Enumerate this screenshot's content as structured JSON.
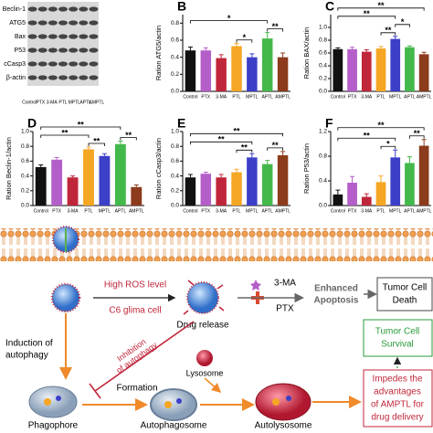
{
  "chart_data": [
    {
      "type": "bar",
      "panel": "B",
      "ylabel": "Ration ATG5/actin",
      "categories": [
        "Control",
        "PTX",
        "3-MA",
        "PTL",
        "MPTL",
        "APTL",
        "AMPTL"
      ],
      "values": [
        0.48,
        0.48,
        0.39,
        0.53,
        0.4,
        0.62,
        0.4
      ],
      "errors": [
        0.04,
        0.03,
        0.04,
        0.03,
        0.04,
        0.07,
        0.05
      ],
      "colors": [
        "#111111",
        "#b45fc9",
        "#c0263a",
        "#f5a623",
        "#3c3fc8",
        "#43b84b",
        "#8c3b1c"
      ],
      "ylim": [
        0,
        0.9
      ],
      "yticks": [
        {
          "value": 0,
          "label": "0.0"
        },
        0.2,
        0.4,
        0.6,
        0.8
      ],
      "annotations": [
        {
          "text": "*",
          "between": [
            "PTL",
            "MPTL"
          ]
        },
        {
          "text": "**",
          "between": [
            "APTL",
            "AMPTL"
          ]
        },
        {
          "text": "*",
          "between": [
            "Control",
            "APTL"
          ]
        }
      ]
    },
    {
      "type": "bar",
      "panel": "C",
      "ylabel": "Ration BAX/actin",
      "categories": [
        "Control",
        "PTX",
        "3-MA",
        "PTL",
        "MPTL",
        "APTL",
        "AMPTL"
      ],
      "values": [
        0.66,
        0.66,
        0.62,
        0.67,
        0.82,
        0.69,
        0.58
      ],
      "errors": [
        0.02,
        0.03,
        0.03,
        0.03,
        0.04,
        0.02,
        0.03
      ],
      "colors": [
        "#111111",
        "#b45fc9",
        "#c0263a",
        "#f5a623",
        "#3c3fc8",
        "#43b84b",
        "#8c3b1c"
      ],
      "ylim": [
        0,
        1.2
      ],
      "yticks": [
        {
          "value": 0,
          "label": "0.0"
        },
        0.2,
        0.4,
        0.6,
        0.8,
        {
          "value": 1,
          "label": "1.0"
        }
      ],
      "annotations": [
        {
          "text": "**",
          "between": [
            "PTL",
            "MPTL"
          ]
        },
        {
          "text": "*",
          "between": [
            "MPTL",
            "APTL"
          ]
        },
        {
          "text": "**",
          "between": [
            "Control",
            "MPTL"
          ]
        },
        {
          "text": "**",
          "between": [
            "Control",
            "AMPTL"
          ]
        }
      ]
    },
    {
      "type": "bar",
      "panel": "D",
      "ylabel": "Ration Beclin-1/actin",
      "categories": [
        "Control",
        "PTX",
        "3-MA",
        "PTL",
        "MPTL",
        "APTL",
        "AMPTL"
      ],
      "values": [
        0.52,
        0.62,
        0.38,
        0.76,
        0.67,
        0.83,
        0.25
      ],
      "errors": [
        0.03,
        0.03,
        0.02,
        0.03,
        0.03,
        0.04,
        0.03
      ],
      "colors": [
        "#111111",
        "#b45fc9",
        "#c0263a",
        "#f5a623",
        "#3c3fc8",
        "#43b84b",
        "#8c3b1c"
      ],
      "ylim": [
        0,
        1
      ],
      "yticks": [
        {
          "value": 0,
          "label": "0.0"
        },
        0.2,
        0.4,
        0.6,
        0.8,
        {
          "value": 1,
          "label": "1.0"
        }
      ],
      "annotations": [
        {
          "text": "**",
          "between": [
            "PTL",
            "MPTL"
          ]
        },
        {
          "text": "**",
          "between": [
            "APTL",
            "AMPTL"
          ]
        },
        {
          "text": "**",
          "between": [
            "Control",
            "PTL"
          ]
        },
        {
          "text": "**",
          "between": [
            "Control",
            "APTL"
          ]
        }
      ]
    },
    {
      "type": "bar",
      "panel": "E",
      "ylabel": "Ration cCasp3/actin",
      "categories": [
        "Control",
        "PTX",
        "3-MA",
        "PTL",
        "MPTL",
        "APTL",
        "AMPTL"
      ],
      "values": [
        0.38,
        0.43,
        0.38,
        0.45,
        0.65,
        0.56,
        0.68
      ],
      "errors": [
        0.04,
        0.02,
        0.04,
        0.04,
        0.05,
        0.05,
        0.05
      ],
      "colors": [
        "#111111",
        "#b45fc9",
        "#c0263a",
        "#f5a623",
        "#3c3fc8",
        "#43b84b",
        "#8c3b1c"
      ],
      "ylim": [
        0,
        1
      ],
      "yticks": [
        {
          "value": 0,
          "label": "0.0"
        },
        0.2,
        0.4,
        0.6,
        0.8,
        {
          "value": 1,
          "label": "1.0"
        }
      ],
      "annotations": [
        {
          "text": "**",
          "between": [
            "PTL",
            "MPTL"
          ]
        },
        {
          "text": "**",
          "between": [
            "APTL",
            "AMPTL"
          ]
        },
        {
          "text": "**",
          "between": [
            "Control",
            "MPTL"
          ]
        },
        {
          "text": "**",
          "between": [
            "Control",
            "AMPTL"
          ]
        }
      ]
    },
    {
      "type": "bar",
      "panel": "F",
      "ylabel": "Ration P53/actin",
      "categories": [
        "Control",
        "PTX",
        "3-MA",
        "PTL",
        "MPTL",
        "APTL",
        "AMPTL"
      ],
      "values": [
        0.18,
        0.37,
        0.14,
        0.38,
        0.78,
        0.69,
        0.97
      ],
      "errors": [
        0.07,
        0.1,
        0.05,
        0.1,
        0.12,
        0.1,
        0.1
      ],
      "colors": [
        "#111111",
        "#b45fc9",
        "#c0263a",
        "#f5a623",
        "#3c3fc8",
        "#43b84b",
        "#8c3b1c"
      ],
      "ylim": [
        0,
        1.2
      ],
      "yticks": [
        {
          "value": 0,
          "label": "0.0"
        },
        0.4,
        0.8,
        1.2
      ],
      "annotations": [
        {
          "text": "*",
          "between": [
            "PTL",
            "MPTL"
          ]
        },
        {
          "text": "**",
          "between": [
            "APTL",
            "AMPTL"
          ]
        },
        {
          "text": "**",
          "between": [
            "Control",
            "MPTL"
          ]
        },
        {
          "text": "**",
          "between": [
            "Control",
            "AMPTL"
          ]
        }
      ]
    }
  ],
  "blot": {
    "rows": [
      "Beclin-1",
      "ATG5",
      "Bax",
      "P53",
      "cCasp3",
      "β-actin"
    ],
    "lanes": [
      "Control",
      "PTX",
      "3-MA",
      "PTL",
      "MPTL",
      "APTL",
      "AMPTL"
    ]
  },
  "diagram": {
    "high_ros": "High ROS level",
    "cell": "C6 glima cell",
    "drug_release": "Drug release",
    "drug1": "3-MA",
    "drug2": "PTX",
    "apoptosis": [
      "Enhanced",
      "Apoptosis"
    ],
    "death": [
      "Tumor Cell",
      "Death"
    ],
    "induction": [
      "Induction of",
      "autophagy"
    ],
    "inhibition": [
      "Inhibition",
      "of autophagy"
    ],
    "survival": [
      "Tumor Cell",
      "Survival"
    ],
    "lysosome": "Lysosome",
    "formation": "Formation",
    "impedes": [
      "Impedes the",
      "advantages",
      "of AMPTL for",
      "drug delivery"
    ],
    "phagophore": "Phagophore",
    "autophagosome": "Autophagosome",
    "autolysosome": "Autolysosome"
  }
}
